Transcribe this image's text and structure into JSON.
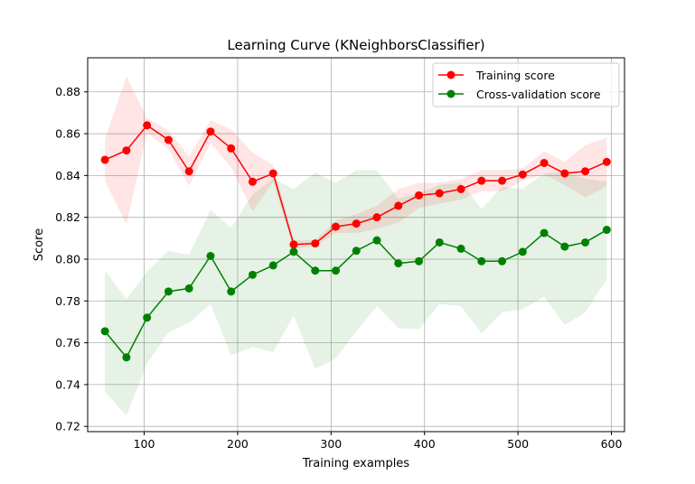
{
  "chart_data": {
    "type": "line",
    "title": "Learning Curve (KNeighborsClassifier)",
    "xlabel": "Training examples",
    "ylabel": "Score",
    "xlim": [
      39.5,
      614
    ],
    "ylim": [
      0.7175,
      0.8963
    ],
    "xticks": [
      100,
      200,
      300,
      400,
      500,
      600
    ],
    "yticks": [
      0.72,
      0.74,
      0.76,
      0.78,
      0.8,
      0.82,
      0.84,
      0.86,
      0.88
    ],
    "grid": true,
    "legend_position": "upper-right",
    "x": [
      58,
      81,
      103,
      126,
      148,
      171,
      193,
      216,
      238,
      260,
      283,
      305,
      327,
      349,
      372,
      394,
      416,
      439,
      461,
      483,
      505,
      528,
      550,
      572,
      595
    ],
    "series": [
      {
        "name": "Training score",
        "color": "#ff0000",
        "values": [
          0.8475,
          0.852,
          0.864,
          0.857,
          0.842,
          0.861,
          0.853,
          0.837,
          0.841,
          0.807,
          0.8075,
          0.8155,
          0.817,
          0.82,
          0.8255,
          0.8305,
          0.8315,
          0.8335,
          0.8375,
          0.8375,
          0.8405,
          0.846,
          0.841,
          0.842,
          0.8465
        ],
        "band_upper": [
          0.8575,
          0.8875,
          0.8675,
          0.8615,
          0.849,
          0.8665,
          0.862,
          0.851,
          0.845,
          0.809,
          0.809,
          0.8185,
          0.8215,
          0.8255,
          0.8335,
          0.8365,
          0.8365,
          0.8385,
          0.8425,
          0.8425,
          0.8435,
          0.8515,
          0.8465,
          0.8545,
          0.858
        ],
        "band_lower": [
          0.8375,
          0.8165,
          0.8605,
          0.8525,
          0.835,
          0.8555,
          0.844,
          0.823,
          0.837,
          0.805,
          0.806,
          0.8125,
          0.8125,
          0.8145,
          0.8175,
          0.8245,
          0.8265,
          0.8285,
          0.8325,
          0.8325,
          0.8375,
          0.8405,
          0.8355,
          0.8295,
          0.835
        ]
      },
      {
        "name": "Cross-validation score",
        "color": "#008000",
        "values": [
          0.7655,
          0.753,
          0.772,
          0.7845,
          0.786,
          0.8015,
          0.7845,
          0.7925,
          0.797,
          0.8035,
          0.7945,
          0.7945,
          0.804,
          0.809,
          0.798,
          0.799,
          0.808,
          0.805,
          0.799,
          0.799,
          0.8035,
          0.8125,
          0.806,
          0.808,
          0.814
        ],
        "band_upper": [
          0.7945,
          0.781,
          0.794,
          0.804,
          0.802,
          0.8235,
          0.815,
          0.831,
          0.8385,
          0.8335,
          0.8415,
          0.8365,
          0.8425,
          0.8425,
          0.829,
          0.8315,
          0.8355,
          0.8365,
          0.824,
          0.8345,
          0.8335,
          0.841,
          0.8415,
          0.8385,
          0.837
        ],
        "band_lower": [
          0.7365,
          0.725,
          0.75,
          0.765,
          0.7695,
          0.7785,
          0.754,
          0.758,
          0.7555,
          0.773,
          0.7475,
          0.7525,
          0.7655,
          0.7775,
          0.767,
          0.7665,
          0.7785,
          0.7775,
          0.7645,
          0.7745,
          0.776,
          0.782,
          0.7685,
          0.7745,
          0.7905
        ]
      }
    ]
  }
}
